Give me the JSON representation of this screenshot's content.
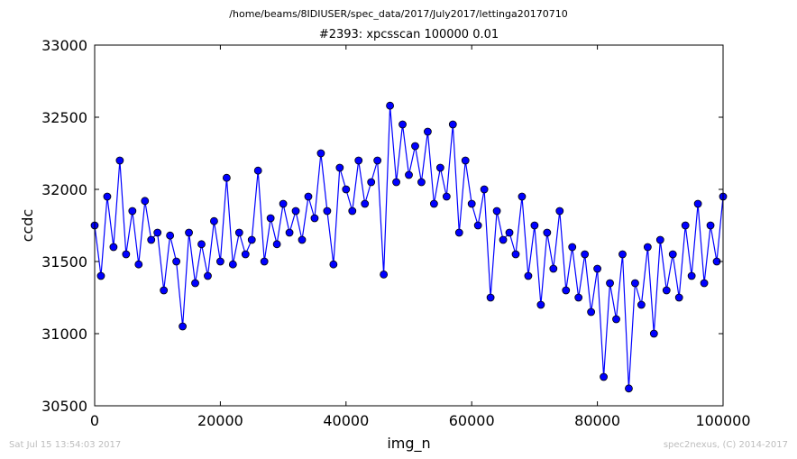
{
  "header": {
    "path_title": "/home/beams/8IDIUSER/spec_data/2017/July2017/lettinga20170710"
  },
  "footer": {
    "timestamp": "Sat Jul 15 13:54:03 2017",
    "credit": "spec2nexus, (C) 2014-2017"
  },
  "colors": {
    "series": "#0000ff",
    "marker_edge": "#000000",
    "axes": "#000000",
    "footer_text": "#bdbdbd"
  },
  "chart_data": {
    "type": "line",
    "title": "#2393: xpcsscan 100000 0.01",
    "xlabel": "img_n",
    "ylabel": "ccdc",
    "xlim": [
      0,
      100000
    ],
    "ylim": [
      30500,
      33000
    ],
    "xticks": [
      0,
      20000,
      40000,
      60000,
      80000,
      100000
    ],
    "yticks": [
      30500,
      31000,
      31500,
      32000,
      32500,
      33000
    ],
    "xtick_labels": [
      "0",
      "20000",
      "40000",
      "60000",
      "80000",
      "100000"
    ],
    "ytick_labels": [
      "30500",
      "31000",
      "31500",
      "32000",
      "32500",
      "33000"
    ],
    "grid": false,
    "legend": "none",
    "markers": "circle",
    "series": [
      {
        "x": [
          0,
          1000,
          2000,
          3000,
          4000,
          5000,
          6000,
          7000,
          8000,
          9000,
          10000,
          11000,
          12000,
          13000,
          14000,
          15000,
          16000,
          17000,
          18000,
          19000,
          20000,
          21000,
          22000,
          23000,
          24000,
          25000,
          26000,
          27000,
          28000,
          29000,
          30000,
          31000,
          32000,
          33000,
          34000,
          35000,
          36000,
          37000,
          38000,
          39000,
          40000,
          41000,
          42000,
          43000,
          44000,
          45000,
          46000,
          47000,
          48000,
          49000,
          50000,
          51000,
          52000,
          53000,
          54000,
          55000,
          56000,
          57000,
          58000,
          59000,
          60000,
          61000,
          62000,
          63000,
          64000,
          65000,
          66000,
          67000,
          68000,
          69000,
          70000,
          71000,
          72000,
          73000,
          74000,
          75000,
          76000,
          77000,
          78000,
          79000,
          80000,
          81000,
          82000,
          83000,
          84000,
          85000,
          86000,
          87000,
          88000,
          89000,
          90000,
          91000,
          92000,
          93000,
          94000,
          95000,
          96000,
          97000,
          98000,
          99000,
          100000
        ],
        "y": [
          31750,
          31400,
          31950,
          31600,
          32200,
          31550,
          31850,
          31480,
          31920,
          31650,
          31700,
          31300,
          31680,
          31500,
          31050,
          31700,
          31350,
          31620,
          31400,
          31780,
          31500,
          32080,
          31480,
          31700,
          31550,
          31650,
          32130,
          31500,
          31800,
          31620,
          31900,
          31700,
          31850,
          31650,
          31950,
          31800,
          32250,
          31850,
          31480,
          32150,
          32000,
          31850,
          32200,
          31900,
          32050,
          32200,
          31410,
          32580,
          32050,
          32450,
          32100,
          32300,
          32050,
          32400,
          31900,
          32150,
          31950,
          32450,
          31700,
          32200,
          31900,
          31750,
          32000,
          31250,
          31850,
          31650,
          31700,
          31550,
          31950,
          31400,
          31750,
          31200,
          31700,
          31450,
          31850,
          31300,
          31600,
          31250,
          31550,
          31150,
          31450,
          30700,
          31350,
          31100,
          31550,
          30620,
          31350,
          31200,
          31600,
          31000,
          31650,
          31300,
          31550,
          31250,
          31750,
          31400,
          31900,
          31350,
          31750,
          31500,
          31950
        ]
      }
    ]
  }
}
